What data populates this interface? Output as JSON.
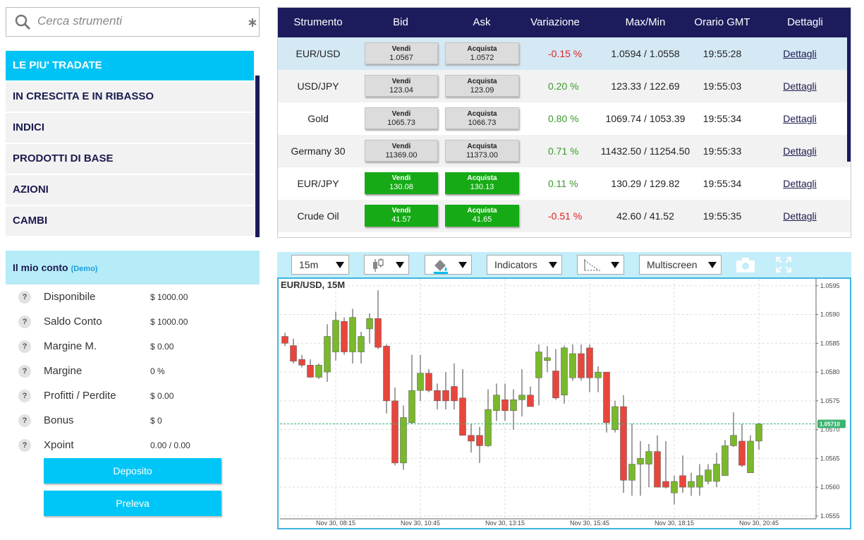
{
  "search": {
    "placeholder": "Cerca strumenti"
  },
  "menu": [
    {
      "label": "LE PIU' TRADATE",
      "icon": "arrow",
      "active": true
    },
    {
      "label": "IN CRESCITA E IN RIBASSO",
      "icon": "plus",
      "active": false
    },
    {
      "label": "INDICI",
      "icon": "arrow",
      "active": false
    },
    {
      "label": "PRODOTTI DI BASE",
      "icon": "arrow",
      "active": false
    },
    {
      "label": "AZIONI",
      "icon": "plus",
      "active": false
    },
    {
      "label": "CAMBI",
      "icon": "plus",
      "active": false
    }
  ],
  "account": {
    "title": "Il mio conto",
    "badge": "(Demo)",
    "help": "?",
    "rows": [
      {
        "label": "Disponibile",
        "value": "$ 1000.00"
      },
      {
        "label": "Saldo Conto",
        "value": "$ 1000.00"
      },
      {
        "label": "Margine M.",
        "value": "$ 0.00"
      },
      {
        "label": "Margine",
        "value": "0 %"
      },
      {
        "label": "Profitti / Perdite",
        "value": "$ 0.00"
      },
      {
        "label": "Bonus",
        "value": "$ 0"
      },
      {
        "label": "Xpoint",
        "value": "0.00 / 0.00"
      }
    ]
  },
  "buttons": [
    "Deposito",
    "Preleva"
  ],
  "table": {
    "headers": [
      "Strumento",
      "Bid",
      "Ask",
      "Variazione",
      "Max/Min",
      "Orario GMT",
      "Dettagli"
    ],
    "rows": [
      {
        "instrument": "EUR/USD",
        "bid_label": "Vendi",
        "bid": "1.0567",
        "ask_label": "Acquista",
        "ask": "1.0572",
        "change": "-0.15 %",
        "direction": "down",
        "range": "1.0594 / 1.0558",
        "time": "19:55:28",
        "details": "Dettagli",
        "flash": false,
        "selected": true
      },
      {
        "instrument": "USD/JPY",
        "bid_label": "Vendi",
        "bid": "123.04",
        "ask_label": "Acquista",
        "ask": "123.09",
        "change": "0.20 %",
        "direction": "up",
        "range": "123.33 / 122.69",
        "time": "19:55:03",
        "details": "Dettagli",
        "flash": false,
        "selected": false
      },
      {
        "instrument": "Gold",
        "bid_label": "Vendi",
        "bid": "1065.73",
        "ask_label": "Acquista",
        "ask": "1066.73",
        "change": "0.80 %",
        "direction": "up",
        "range": "1069.74 / 1053.39",
        "time": "19:55:34",
        "details": "Dettagli",
        "flash": false,
        "selected": false
      },
      {
        "instrument": "Germany 30",
        "bid_label": "Vendi",
        "bid": "11369.00",
        "ask_label": "Acquista",
        "ask": "11373.00",
        "change": "0.71 %",
        "direction": "up",
        "range": "11432.50 / 11254.50",
        "time": "19:55:33",
        "details": "Dettagli",
        "flash": false,
        "selected": false
      },
      {
        "instrument": "EUR/JPY",
        "bid_label": "Vendi",
        "bid": "130.08",
        "ask_label": "Acquista",
        "ask": "130.13",
        "change": "0.11 %",
        "direction": "up",
        "range": "130.29 / 129.82",
        "time": "19:55:34",
        "details": "Dettagli",
        "flash": true,
        "selected": false
      },
      {
        "instrument": "Crude Oil",
        "bid_label": "Vendi",
        "bid": "41.57",
        "ask_label": "Acquista",
        "ask": "41.65",
        "change": "-0.51 %",
        "direction": "down",
        "range": "42.60 / 41.52",
        "time": "19:55:35",
        "details": "Dettagli",
        "flash": true,
        "selected": false
      }
    ]
  },
  "toolbar": {
    "interval": "15m",
    "indicators": "Indicators",
    "multiscreen": "Multiscreen"
  },
  "chart_data": {
    "type": "candlestick",
    "title": "EUR/USD, 15M",
    "categories": [
      null,
      null,
      null,
      null,
      null,
      null,
      "Nov 30, 08:15",
      null,
      null,
      null,
      null,
      null,
      null,
      null,
      null,
      null,
      "Nov 30, 10:45",
      null,
      null,
      null,
      null,
      null,
      null,
      null,
      null,
      null,
      "Nov 30, 13:15",
      null,
      null,
      null,
      null,
      null,
      null,
      null,
      null,
      null,
      "Nov 30, 15:45",
      null,
      null,
      null,
      null,
      null,
      null,
      null,
      null,
      null,
      "Nov 30, 18:15",
      null,
      null,
      null,
      null,
      null,
      null,
      null,
      null,
      null,
      "Nov 30, 20:45"
    ],
    "open": [
      1.05862,
      1.05846,
      1.05822,
      1.05812,
      1.05791,
      1.058,
      1.05835,
      1.05888,
      1.05835,
      1.05835,
      1.05875,
      1.05893,
      1.05845,
      1.0575,
      1.05642,
      1.05712,
      1.05768,
      1.05798,
      1.05768,
      1.05768,
      1.05775,
      1.05755,
      1.0569,
      1.0569,
      1.05672,
      1.05733,
      1.05752,
      1.05733,
      1.05752,
      1.0576,
      1.0579,
      1.0582,
      1.05802,
      1.0576,
      1.0579,
      1.05832,
      1.05842,
      1.0579,
      1.058,
      1.057,
      1.0574,
      1.05612,
      1.0564,
      1.0564,
      1.05662,
      1.0561,
      1.0559,
      1.0562,
      1.056,
      1.056,
      1.0561,
      1.0561,
      1.0562,
      1.05672,
      1.0568,
      1.05625,
      1.0568
    ],
    "high": [
      1.05868,
      1.05858,
      1.0583,
      1.05822,
      1.05815,
      1.05883,
      1.05905,
      1.05895,
      1.0591,
      1.0587,
      1.05902,
      1.05942,
      1.05848,
      1.05773,
      1.05742,
      1.0583,
      1.0583,
      1.05805,
      1.0578,
      1.058,
      1.05815,
      1.05805,
      1.0571,
      1.05705,
      1.0577,
      1.0578,
      1.0578,
      1.0577,
      1.05805,
      1.05775,
      1.05848,
      1.05845,
      1.0584,
      1.05846,
      1.05848,
      1.05848,
      1.05848,
      1.0581,
      1.058,
      1.0575,
      1.0576,
      1.0571,
      1.0568,
      1.05675,
      1.0569,
      1.0568,
      1.0562,
      1.05655,
      1.05625,
      1.0564,
      1.0564,
      1.0566,
      1.05682,
      1.0573,
      1.0571,
      1.0569,
      1.05712
    ],
    "low": [
      1.05845,
      1.05815,
      1.05808,
      1.0579,
      1.05788,
      1.05783,
      1.0582,
      1.0583,
      1.05815,
      1.05815,
      1.0585,
      1.0584,
      1.05728,
      1.05638,
      1.0563,
      1.0571,
      1.0575,
      1.05765,
      1.05735,
      1.05735,
      1.05735,
      1.0569,
      1.0566,
      1.05642,
      1.0567,
      1.05715,
      1.05715,
      1.057,
      1.05723,
      1.0574,
      1.05742,
      1.058,
      1.05752,
      1.05745,
      1.05785,
      1.05785,
      1.05765,
      1.05765,
      1.05695,
      1.05695,
      1.0559,
      1.05585,
      1.05585,
      1.056,
      1.056,
      1.05598,
      1.0557,
      1.0559,
      1.05585,
      1.05585,
      1.05605,
      1.056,
      1.0562,
      1.0567,
      1.05635,
      1.05625,
      1.05665
    ],
    "close": [
      1.0585,
      1.05819,
      1.05812,
      1.05791,
      1.05812,
      1.05862,
      1.0589,
      1.05835,
      1.05895,
      1.05862,
      1.05893,
      1.05843,
      1.0575,
      1.05642,
      1.05721,
      1.05768,
      1.05798,
      1.05768,
      1.0575,
      1.0575,
      1.0575,
      1.0569,
      1.0568,
      1.05672,
      1.05735,
      1.0576,
      1.05733,
      1.05752,
      1.0576,
      1.0574,
      1.05835,
      1.05825,
      1.05755,
      1.05842,
      1.05832,
      1.0579,
      1.0579,
      1.058,
      1.05712,
      1.0574,
      1.05612,
      1.0564,
      1.0565,
      1.05662,
      1.056,
      1.056,
      1.0561,
      1.056,
      1.0561,
      1.0562,
      1.0563,
      1.0564,
      1.05672,
      1.0569,
      1.05638,
      1.0568,
      1.0571
    ],
    "up_color": "#7ab82c",
    "down_color": "#e8463c",
    "ylim": [
      1.05545,
      1.05962
    ],
    "yticks": [
      {
        "value": 1.0555,
        "label": "1.0555"
      },
      {
        "value": 1.056,
        "label": "1.0560"
      },
      1.0565,
      {
        "value": 1.057,
        "label": "1.0570"
      },
      1.0575,
      {
        "value": 1.058,
        "label": "1.0580"
      },
      1.0585,
      {
        "value": 1.059,
        "label": "1.0590"
      },
      1.0595
    ],
    "grid": true,
    "last_value": 1.0571,
    "last_value_label": "1.05710"
  }
}
